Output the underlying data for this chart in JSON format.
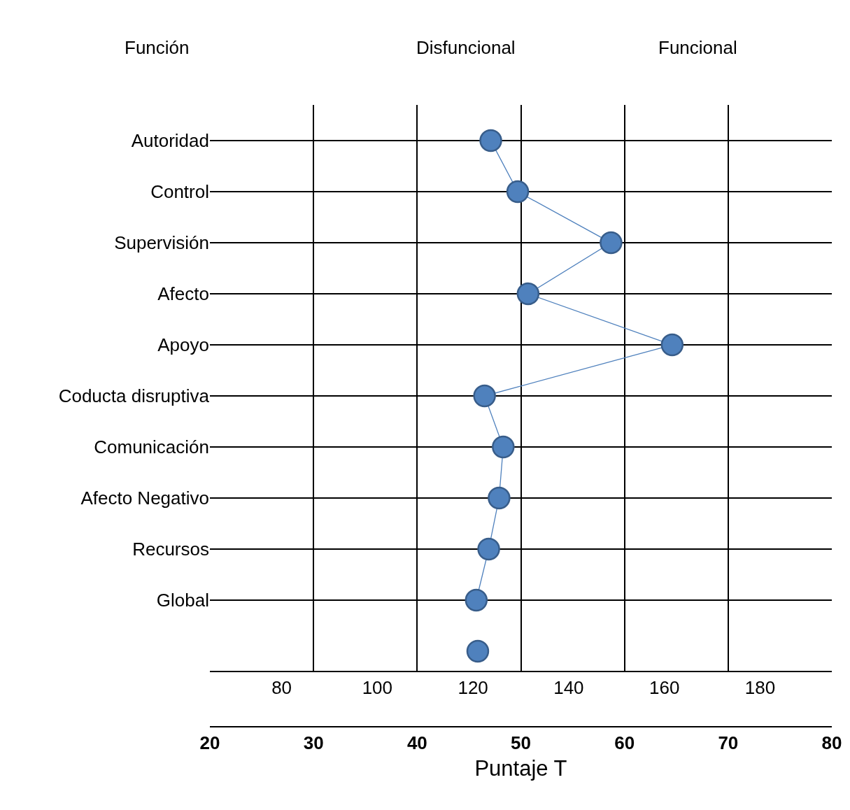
{
  "chart_data": {
    "type": "line",
    "annotations": [
      "Función",
      "Disfuncional",
      "Funcional"
    ],
    "xlabel": "Puntaje T",
    "categories": [
      "Autoridad",
      "Control",
      "Supervisión",
      "Afecto",
      "Apoyo",
      "Coducta disruptiva",
      "Comunicación",
      "Afecto Negativo",
      "Recursos",
      "Global",
      null
    ],
    "series": [
      {
        "color": "#4f81bd",
        "values": [
          47.1,
          49.7,
          58.7,
          50.7,
          64.6,
          46.5,
          48.3,
          47.9,
          46.9,
          45.7,
          null
        ]
      },
      {
        "color": "#4f81bd",
        "axis": "x2",
        "values": [
          null,
          null,
          null,
          null,
          null,
          null,
          null,
          null,
          null,
          null,
          121
        ]
      }
    ],
    "xlim": [
      20,
      80
    ],
    "xticks": [
      20,
      30,
      40,
      50,
      60,
      70,
      80
    ],
    "x2lim": [
      65,
      195
    ],
    "x2ticks": [
      80,
      100,
      120,
      140,
      160,
      180
    ],
    "orientation": "horizontal",
    "grid": true,
    "legend": false,
    "marker": "circle",
    "line_style": "solid"
  }
}
